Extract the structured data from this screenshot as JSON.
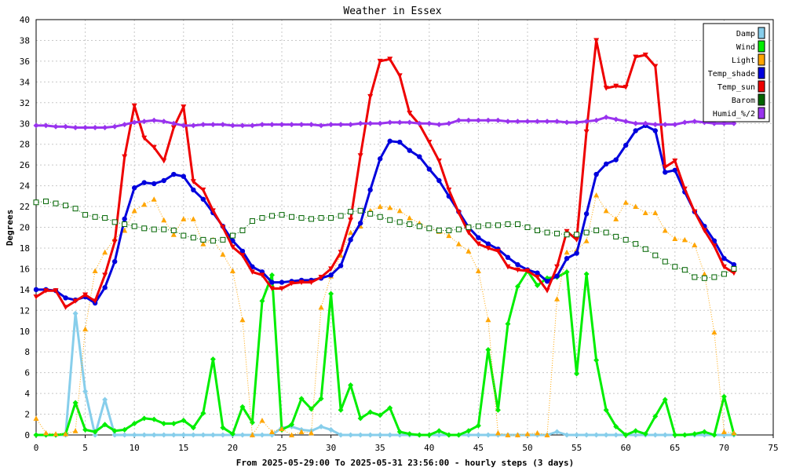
{
  "chart_data": {
    "type": "line",
    "title": "Weather in Essex",
    "xlabel": "From 2025-05-29:00 To 2025-05-31 23:56:00 - hourly steps (3 days)",
    "ylabel": "Degrees",
    "xlim": [
      0,
      75
    ],
    "ylim": [
      0,
      40
    ],
    "xticks": [
      0,
      5,
      10,
      15,
      20,
      25,
      30,
      35,
      40,
      45,
      50,
      55,
      60,
      65,
      70,
      75
    ],
    "yticks": [
      0,
      2,
      4,
      6,
      8,
      10,
      12,
      14,
      16,
      18,
      20,
      22,
      24,
      26,
      28,
      30,
      32,
      34,
      36,
      38,
      40
    ],
    "grid": true,
    "legend_position": "top-right",
    "series": [
      {
        "name": "Damp",
        "color": "#87ceeb",
        "marker": "diamond",
        "style": "solid",
        "width": 3,
        "values": [
          0,
          0,
          0,
          0,
          11.7,
          4.2,
          0,
          3.4,
          0,
          0,
          0,
          0,
          0,
          0,
          0,
          0,
          0,
          0,
          0,
          0,
          0,
          0,
          0,
          0,
          0,
          0.7,
          0.8,
          0.5,
          0.4,
          0.8,
          0.5,
          0,
          0,
          0,
          0,
          0,
          0,
          0,
          0,
          0,
          0,
          0,
          0,
          0,
          0,
          0,
          0,
          0,
          0,
          0,
          0,
          0,
          0,
          0.3,
          0,
          0,
          0,
          0,
          0,
          0,
          0,
          0,
          0,
          0,
          0,
          0,
          0,
          0,
          0,
          0,
          0,
          0
        ]
      },
      {
        "name": "Wind",
        "color": "#00ee00",
        "marker": "diamond",
        "style": "solid",
        "width": 3,
        "values": [
          0,
          0,
          0,
          0.1,
          3.1,
          0.5,
          0.3,
          1,
          0.4,
          0.5,
          1.1,
          1.6,
          1.5,
          1.1,
          1.1,
          1.4,
          0.7,
          2.1,
          7.3,
          0.7,
          0.1,
          2.7,
          1.2,
          12.9,
          15.4,
          0.5,
          1,
          3.5,
          2.5,
          3.5,
          13.6,
          2.4,
          4.8,
          1.6,
          2.2,
          1.9,
          2.6,
          0.3,
          0.1,
          0,
          0,
          0.4,
          0,
          0,
          0.4,
          0.9,
          8.2,
          2.4,
          10.7,
          14.3,
          15.8,
          14.4,
          15.1,
          15.2,
          15.7,
          5.9,
          15.5,
          7.2,
          2.4,
          0.8,
          0,
          0.4,
          0.1,
          1.8,
          3.4,
          0,
          0,
          0.1,
          0.3,
          0,
          3.7,
          0.1
        ]
      },
      {
        "name": "Light",
        "color": "#ffa500",
        "marker": "triangle",
        "style": "dotted",
        "width": 1,
        "values": [
          1.6,
          0.2,
          0.1,
          0.1,
          0.4,
          10.2,
          15.8,
          17.6,
          18.9,
          19.7,
          21.6,
          22.2,
          22.7,
          20.7,
          19.3,
          20.8,
          20.8,
          18.4,
          18.8,
          17.4,
          15.8,
          11.1,
          0,
          1.4,
          0.3,
          0.6,
          0,
          0.3,
          0.2,
          12.3,
          15.3,
          17.3,
          19.5,
          20.1,
          21.6,
          22,
          21.9,
          21.6,
          20.9,
          20.4,
          19.9,
          19.6,
          19.2,
          18.4,
          17.7,
          15.8,
          11.1,
          0.2,
          0,
          0,
          0.1,
          0.2,
          0,
          13.1,
          17.6,
          17.8,
          18.7,
          23.1,
          21.6,
          20.8,
          22.4,
          22,
          21.4,
          21.4,
          19.7,
          18.9,
          18.8,
          18.3,
          15.5,
          9.9,
          0.3,
          0.2
        ]
      },
      {
        "name": "Temp_shade",
        "color": "#0000dd",
        "marker": "circle",
        "style": "solid",
        "width": 3,
        "values": [
          14,
          14,
          13.9,
          13.2,
          13,
          13.3,
          12.7,
          14.2,
          16.7,
          20.8,
          23.8,
          24.3,
          24.2,
          24.5,
          25.1,
          24.9,
          23.6,
          22.7,
          21.4,
          20.1,
          18.7,
          17.7,
          16.2,
          15.7,
          14.7,
          14.7,
          14.8,
          14.9,
          14.9,
          15.1,
          15.4,
          16.3,
          18.8,
          20.4,
          23.6,
          26.6,
          28.3,
          28.2,
          27.4,
          26.8,
          25.6,
          24.5,
          23,
          21.5,
          20,
          19,
          18.4,
          17.9,
          17.1,
          16.4,
          15.9,
          15.6,
          14.8,
          15.3,
          17,
          17.5,
          21.3,
          25.1,
          26.1,
          26.5,
          27.9,
          29.3,
          29.8,
          29.3,
          25.3,
          25.5,
          23.4,
          21.5,
          20.1,
          18.7,
          17,
          16.4
        ]
      },
      {
        "name": "Temp_sun",
        "color": "#ee0000",
        "marker": "triangle-down",
        "style": "solid",
        "width": 3,
        "values": [
          13.3,
          13.9,
          13.9,
          12.3,
          12.9,
          13.5,
          12.9,
          15.4,
          18.6,
          26.8,
          31.7,
          28.6,
          27.7,
          26.4,
          29.6,
          31.6,
          24.4,
          23.6,
          21.6,
          20,
          18.1,
          17.3,
          15.7,
          15.4,
          14.1,
          14.1,
          14.6,
          14.7,
          14.7,
          15.2,
          16,
          17.6,
          20.7,
          26.9,
          32.6,
          36,
          36.2,
          34.6,
          31,
          29.9,
          28.2,
          26.4,
          23.6,
          21.4,
          19.5,
          18.4,
          18,
          17.7,
          16.2,
          15.9,
          15.8,
          15.2,
          13.9,
          16.2,
          19.6,
          18.8,
          29.2,
          38,
          33.4,
          33.6,
          33.5,
          36.4,
          36.6,
          35.5,
          25.8,
          26.4,
          23.7,
          21.5,
          19.7,
          18.2,
          16.2,
          15.6
        ]
      },
      {
        "name": "Barom",
        "color": "#006400",
        "marker": "square-open",
        "style": "dotted",
        "width": 1,
        "values": [
          22.4,
          22.5,
          22.3,
          22.1,
          21.8,
          21.2,
          21,
          20.9,
          20.5,
          20.3,
          20.1,
          19.9,
          19.8,
          19.8,
          19.7,
          19.2,
          19,
          18.8,
          18.7,
          18.8,
          19.2,
          19.7,
          20.6,
          20.9,
          21.1,
          21.2,
          21,
          20.9,
          20.8,
          20.9,
          20.9,
          21.1,
          21.5,
          21.6,
          21.3,
          21,
          20.7,
          20.5,
          20.3,
          20.1,
          19.9,
          19.7,
          19.7,
          19.8,
          20,
          20.1,
          20.2,
          20.2,
          20.3,
          20.3,
          20,
          19.7,
          19.5,
          19.4,
          19.3,
          19.3,
          19.5,
          19.7,
          19.5,
          19.1,
          18.8,
          18.4,
          17.9,
          17.3,
          16.7,
          16.2,
          15.9,
          15.2,
          15.1,
          15.2,
          15.5,
          16
        ]
      },
      {
        "name": "Humid_%/2",
        "color": "#9933ee",
        "marker": "diamond",
        "style": "solid",
        "width": 3,
        "values": [
          29.8,
          29.8,
          29.7,
          29.7,
          29.6,
          29.6,
          29.6,
          29.6,
          29.7,
          29.9,
          30.1,
          30.2,
          30.3,
          30.2,
          30,
          29.8,
          29.8,
          29.9,
          29.9,
          29.9,
          29.8,
          29.8,
          29.8,
          29.9,
          29.9,
          29.9,
          29.9,
          29.9,
          29.9,
          29.8,
          29.9,
          29.9,
          29.9,
          30,
          30,
          30,
          30.1,
          30.1,
          30.1,
          30,
          30,
          29.9,
          30,
          30.3,
          30.3,
          30.3,
          30.3,
          30.3,
          30.2,
          30.2,
          30.2,
          30.2,
          30.2,
          30.2,
          30.1,
          30.1,
          30.2,
          30.3,
          30.6,
          30.4,
          30.2,
          30,
          30,
          29.9,
          29.9,
          29.9,
          30.1,
          30.2,
          30.1,
          30,
          30,
          30
        ]
      }
    ]
  }
}
